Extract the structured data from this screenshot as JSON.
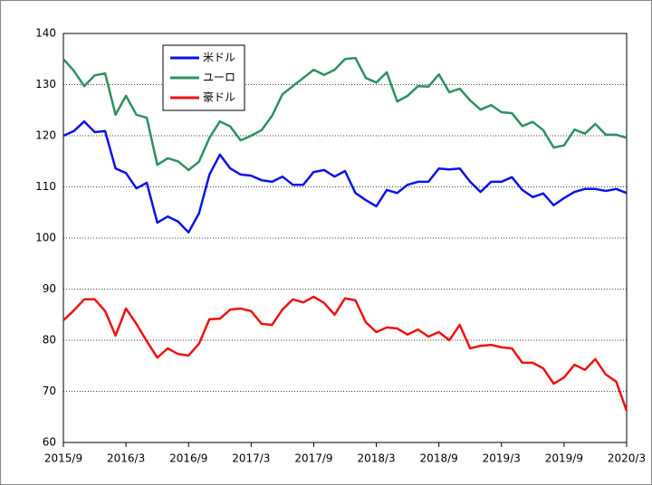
{
  "chart_data": {
    "type": "line",
    "categories": [
      "2015/9",
      null,
      null,
      null,
      null,
      null,
      "2016/3",
      null,
      null,
      null,
      null,
      null,
      "2016/9",
      null,
      null,
      null,
      null,
      null,
      "2017/3",
      null,
      null,
      null,
      null,
      null,
      "2017/9",
      null,
      null,
      null,
      null,
      null,
      "2018/3",
      null,
      null,
      null,
      null,
      null,
      "2018/9",
      null,
      null,
      null,
      null,
      null,
      "2019/3",
      null,
      null,
      null,
      null,
      null,
      "2019/9",
      null,
      null,
      null,
      null,
      null,
      "2020/3"
    ],
    "series": [
      {
        "name": "米ドル",
        "color": "#0a14e6",
        "values": [
          120.0,
          120.9,
          122.8,
          120.7,
          120.9,
          113.6,
          112.7,
          109.7,
          110.8,
          103.0,
          104.2,
          103.2,
          101.1,
          104.8,
          112.4,
          116.3,
          113.6,
          112.4,
          112.2,
          111.3,
          111.0,
          112.0,
          110.4,
          110.4,
          112.9,
          113.3,
          112.0,
          113.1,
          108.8,
          107.4,
          106.2,
          109.4,
          108.8,
          110.4,
          111.0,
          111.0,
          113.6,
          113.4,
          113.6,
          111.0,
          109.0,
          111.0,
          111.0,
          111.9,
          109.4,
          108.0,
          108.7,
          106.4,
          107.8,
          109.0,
          109.6,
          109.6,
          109.2,
          109.6,
          108.8
        ]
      },
      {
        "name": "ユーロ",
        "color": "#2e9060",
        "values": [
          135.0,
          132.7,
          129.7,
          131.8,
          132.2,
          124.1,
          127.8,
          124.1,
          123.5,
          114.3,
          115.6,
          115.0,
          113.3,
          114.9,
          119.6,
          122.8,
          121.8,
          119.1,
          120.0,
          121.1,
          123.9,
          128.1,
          129.7,
          131.3,
          132.9,
          131.9,
          132.9,
          135.0,
          135.2,
          131.3,
          130.4,
          132.4,
          126.7,
          127.8,
          129.7,
          129.6,
          132.0,
          128.5,
          129.2,
          126.9,
          125.1,
          126.0,
          124.6,
          124.4,
          121.9,
          122.7,
          121.1,
          117.7,
          118.1,
          121.2,
          120.4,
          122.3,
          120.2,
          120.2,
          119.6
        ]
      },
      {
        "name": "豪ドル",
        "color": "#ee1111",
        "values": [
          83.9,
          85.8,
          88.0,
          88.0,
          85.7,
          80.9,
          86.2,
          83.2,
          79.8,
          76.6,
          78.4,
          77.3,
          77.0,
          79.3,
          84.1,
          84.2,
          86.0,
          86.2,
          85.7,
          83.2,
          83.0,
          86.0,
          88.0,
          87.4,
          88.5,
          87.3,
          85.0,
          88.2,
          87.8,
          83.5,
          81.6,
          82.5,
          82.3,
          81.1,
          82.1,
          80.7,
          81.6,
          80.0,
          83.0,
          78.4,
          78.9,
          79.1,
          78.6,
          78.4,
          75.6,
          75.6,
          74.5,
          71.5,
          72.7,
          75.2,
          74.2,
          76.3,
          73.3,
          71.9,
          66.2
        ]
      }
    ],
    "ylim": [
      60,
      140
    ],
    "yticks": [
      60,
      70,
      80,
      90,
      100,
      110,
      120,
      130,
      140
    ],
    "grid": true,
    "legend": "upper-left"
  }
}
